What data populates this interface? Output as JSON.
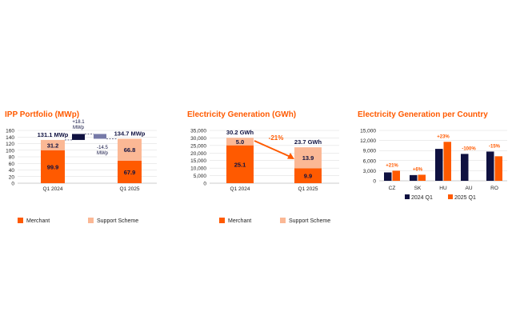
{
  "colors": {
    "merchant": "#ff5a00",
    "support": "#fbb895",
    "navy": "#0f1140",
    "slate": "#767aa8",
    "accent": "#ff5a00",
    "grid": "#d9d9d9",
    "text": "#222222"
  },
  "chart_data": [
    {
      "type": "bar",
      "title": "IPP Portfolio (MWp)",
      "categories": [
        "Q1 2024",
        "Q1 2025"
      ],
      "series": [
        {
          "name": "Merchant",
          "values": [
            99.9,
            67.9
          ]
        },
        {
          "name": "Support Scheme",
          "values": [
            31.2,
            66.8
          ]
        }
      ],
      "totals": [
        "131.1 MWp",
        "134.7 MWp"
      ],
      "bridge": [
        {
          "label": "+18.1",
          "unit": "MWp",
          "value": 18.1
        },
        {
          "label": "-14.5",
          "unit": "MWp",
          "value": -14.5
        }
      ],
      "yticks": [
        "0",
        "20",
        "40",
        "60",
        "80",
        "100",
        "120",
        "140",
        "160"
      ],
      "ylim": [
        0,
        160
      ],
      "legend": [
        "Merchant",
        "Support Scheme"
      ]
    },
    {
      "type": "bar",
      "title": "Electricity Generation (GWh)",
      "categories": [
        "Q1 2024",
        "Q1 2025"
      ],
      "series": [
        {
          "name": "Merchant",
          "values": [
            25.1,
            9.9
          ]
        },
        {
          "name": "Support Scheme",
          "values": [
            5.0,
            13.9
          ]
        }
      ],
      "totals": [
        "30.2 GWh",
        "23.7 GWh"
      ],
      "change": "-21%",
      "yticks": [
        "0",
        "5,000",
        "10,000",
        "15,000",
        "20,000",
        "25,000",
        "30,000",
        "35,000"
      ],
      "ylim": [
        0,
        35000
      ],
      "scale": 1000,
      "legend": [
        "Merchant",
        "Support Scheme"
      ]
    },
    {
      "type": "bar",
      "title": "Electricity Generation per Country",
      "categories": [
        "CZ",
        "SK",
        "HU",
        "AU",
        "RO"
      ],
      "series": [
        {
          "name": "2024 Q1",
          "values": [
            2500,
            1700,
            9500,
            8000,
            8700
          ]
        },
        {
          "name": "2025 Q1",
          "values": [
            3000,
            1800,
            11600,
            0,
            7300
          ]
        }
      ],
      "changes": [
        "+21%",
        "+6%",
        "+23%",
        "-100%",
        "-15%"
      ],
      "yticks": [
        "0",
        "3,000",
        "6,000",
        "9,000",
        "12,000",
        "15,000"
      ],
      "ylim": [
        0,
        15000
      ],
      "legend": [
        "2024 Q1",
        "2025 Q1"
      ]
    }
  ]
}
